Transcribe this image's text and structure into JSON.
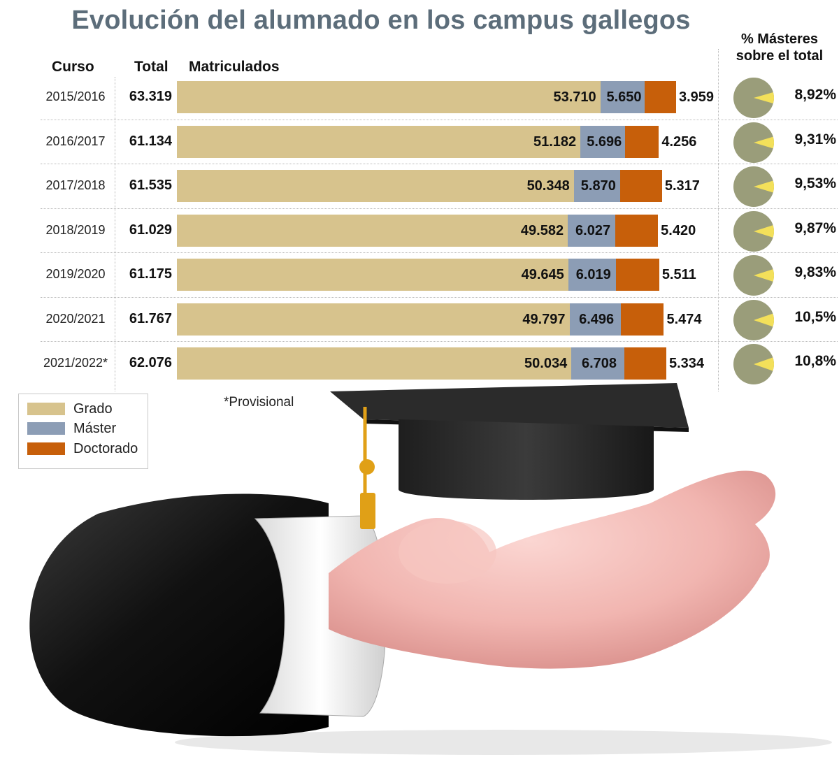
{
  "title": "Evolución del alumnado en los campus gallegos",
  "headers": {
    "curso": "Curso",
    "total": "Total",
    "matriculados": "Matriculados",
    "pct_line1": "% Másteres",
    "pct_line2": "sobre el total"
  },
  "rows": [
    {
      "curso": "2015/2016",
      "total": "63.319",
      "grado": "53.710",
      "master": "5.650",
      "doctorado": "3.959",
      "pct": "8,92%"
    },
    {
      "curso": "2016/2017",
      "total": "61.134",
      "grado": "51.182",
      "master": "5.696",
      "doctorado": "4.256",
      "pct": "9,31%"
    },
    {
      "curso": "2017/2018",
      "total": "61.535",
      "grado": "50.348",
      "master": "5.870",
      "doctorado": "5.317",
      "pct": "9,53%"
    },
    {
      "curso": "2018/2019",
      "total": "61.029",
      "grado": "49.582",
      "master": "6.027",
      "doctorado": "5.420",
      "pct": "9,87%"
    },
    {
      "curso": "2019/2020",
      "total": "61.175",
      "grado": "49.645",
      "master": "6.019",
      "doctorado": "5.511",
      "pct": "9,83%"
    },
    {
      "curso": "2020/2021",
      "total": "61.767",
      "grado": "49.797",
      "master": "6.496",
      "doctorado": "5.474",
      "pct": "10,5%"
    },
    {
      "curso": "2021/2022*",
      "total": "62.076",
      "grado": "50.034",
      "master": "6.708",
      "doctorado": "5.334",
      "pct": "10,8%"
    }
  ],
  "legend": [
    {
      "label": "Grado",
      "color": "#d7c38d"
    },
    {
      "label": "Máster",
      "color": "#8c9db5"
    },
    {
      "label": "Doctorado",
      "color": "#c75f0a"
    }
  ],
  "footnote": "*Provisional",
  "colors": {
    "grado": "#d7c38d",
    "master": "#8c9db5",
    "doctorado": "#c75f0a",
    "pie_base": "#9a9d7a",
    "pie_slice": "#f3e05a",
    "title": "#5c6d7a"
  },
  "chart_data": {
    "type": "bar",
    "orientation": "horizontal",
    "stacked": true,
    "title": "Evolución del alumnado en los campus gallegos",
    "categories": [
      "2015/2016",
      "2016/2017",
      "2017/2018",
      "2018/2019",
      "2019/2020",
      "2020/2021",
      "2021/2022*"
    ],
    "series": [
      {
        "name": "Grado",
        "values": [
          53710,
          51182,
          50348,
          49582,
          49645,
          49797,
          50034
        ]
      },
      {
        "name": "Máster",
        "values": [
          5650,
          5696,
          5870,
          6027,
          6019,
          6496,
          6708
        ]
      },
      {
        "name": "Doctorado",
        "values": [
          3959,
          4256,
          5317,
          5420,
          5511,
          5474,
          5334
        ]
      }
    ],
    "totals": [
      63319,
      61134,
      61535,
      61029,
      61175,
      61767,
      62076
    ],
    "masters_pct": [
      8.92,
      9.31,
      9.53,
      9.87,
      9.83,
      10.5,
      10.8
    ],
    "legend_position": "bottom-left"
  }
}
